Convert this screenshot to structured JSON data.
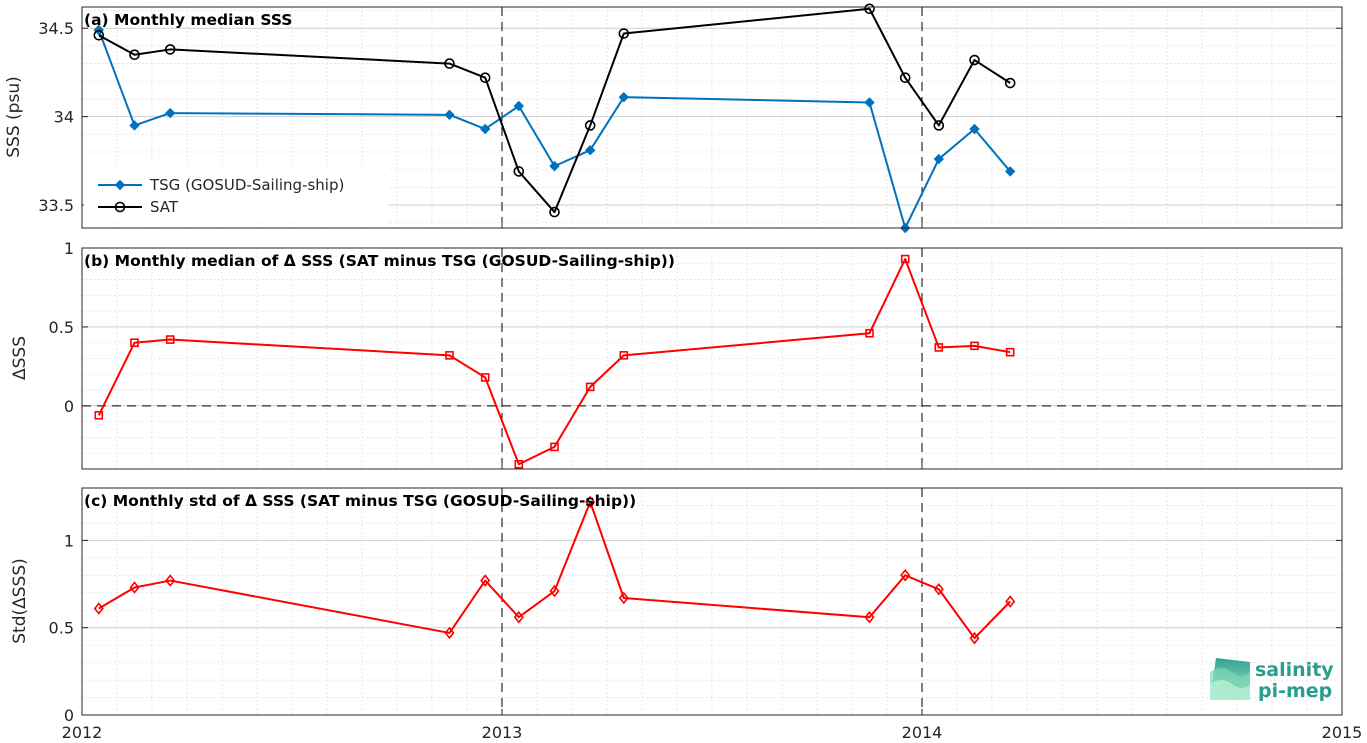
{
  "x_axis": {
    "ticks": [
      2012,
      2013,
      2014,
      2015
    ],
    "tick_labels": [
      "2012",
      "2013",
      "2014",
      "2015"
    ],
    "xlim": [
      2012,
      2015
    ]
  },
  "chart_data": [
    {
      "type": "line",
      "title": "(a) Monthly median SSS",
      "ylabel": "SSS (psu)",
      "ylim": [
        33.37,
        34.62
      ],
      "yticks": [
        33.5,
        34,
        34.5
      ],
      "ytick_labels": [
        "33.5",
        "34",
        "34.5"
      ],
      "grid": true,
      "legend_position": "bottom-left",
      "series": [
        {
          "name": "TSG (GOSUD-Sailing-ship)",
          "color": "#0072BD",
          "marker": "diamond-filled",
          "x": [
            2012.04,
            2012.125,
            2012.21,
            2012.875,
            2012.96,
            2013.04,
            2013.125,
            2013.21,
            2013.29,
            2013.875,
            2013.96,
            2014.04,
            2014.125,
            2014.21
          ],
          "values": [
            34.49,
            33.95,
            34.02,
            34.01,
            33.93,
            34.06,
            33.72,
            33.81,
            34.11,
            34.08,
            33.37,
            33.76,
            33.93,
            33.69
          ]
        },
        {
          "name": "SAT",
          "color": "#000000",
          "marker": "circle-open",
          "x": [
            2012.04,
            2012.125,
            2012.21,
            2012.875,
            2012.96,
            2013.04,
            2013.125,
            2013.21,
            2013.29,
            2013.875,
            2013.96,
            2014.04,
            2014.125,
            2014.21
          ],
          "values": [
            34.46,
            34.35,
            34.38,
            34.3,
            34.22,
            33.69,
            33.46,
            33.95,
            34.47,
            34.61,
            34.22,
            33.95,
            34.32,
            34.19
          ]
        }
      ]
    },
    {
      "type": "line",
      "title": "(b) Monthly median of Δ SSS (SAT minus TSG (GOSUD-Sailing-ship))",
      "ylabel": "ΔSSS",
      "ylim": [
        -0.4,
        1.0
      ],
      "yticks": [
        0,
        0.5,
        1
      ],
      "ytick_labels": [
        "0",
        "0.5",
        "1"
      ],
      "zero_line": true,
      "grid": true,
      "series": [
        {
          "color": "#FF0000",
          "marker": "square-open",
          "x": [
            2012.04,
            2012.125,
            2012.21,
            2012.875,
            2012.96,
            2013.04,
            2013.125,
            2013.21,
            2013.29,
            2013.875,
            2013.96,
            2014.04,
            2014.125,
            2014.21
          ],
          "values": [
            -0.06,
            0.4,
            0.42,
            0.32,
            0.18,
            -0.37,
            -0.26,
            0.12,
            0.32,
            0.46,
            0.93,
            0.37,
            0.38,
            0.34
          ]
        }
      ]
    },
    {
      "type": "line",
      "title": "(c) Monthly std of Δ SSS (SAT minus TSG (GOSUD-Sailing-ship))",
      "ylabel": "Std(ΔSSS)",
      "ylim": [
        0,
        1.3
      ],
      "yticks": [
        0,
        0.5,
        1
      ],
      "ytick_labels": [
        "0",
        "0.5",
        "1"
      ],
      "grid": true,
      "series": [
        {
          "color": "#FF0000",
          "marker": "diamond-open",
          "x": [
            2012.04,
            2012.125,
            2012.21,
            2012.875,
            2012.96,
            2013.04,
            2013.125,
            2013.21,
            2013.29,
            2013.875,
            2013.96,
            2014.04,
            2014.125,
            2014.21
          ],
          "values": [
            0.61,
            0.73,
            0.77,
            0.47,
            0.77,
            0.56,
            0.71,
            1.22,
            0.67,
            0.56,
            0.8,
            0.72,
            0.44,
            0.65
          ]
        }
      ]
    }
  ],
  "logo": {
    "line1": "salinity",
    "line2": "pi-mep"
  }
}
